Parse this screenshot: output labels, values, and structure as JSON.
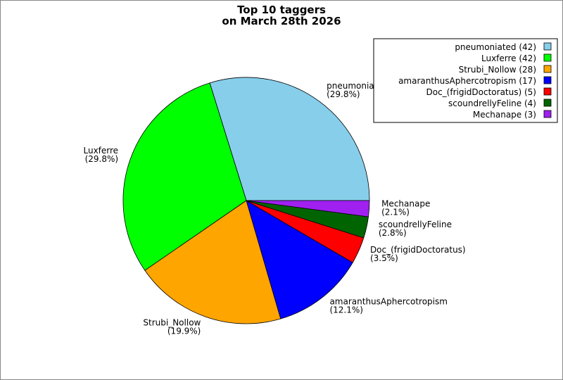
{
  "chart_data": {
    "type": "pie",
    "title": "Top 10 taggers",
    "subtitle": "on March 28th 2026",
    "categories": [
      "pneumoniated",
      "Luxferre",
      "Strubi_Nollow",
      "amaranthusAphercotropism",
      "Doc_(frigidDoctoratus)",
      "scoundrellyFeline",
      "Mechanape"
    ],
    "values": [
      29.8,
      29.8,
      19.9,
      12.1,
      3.5,
      2.8,
      2.1
    ],
    "value_labels": [
      "(29.8%)",
      "(29.8%)",
      "(19.9%)",
      "(12.1%)",
      "(3.5%)",
      "(2.8%)",
      "(2.1%)"
    ],
    "legend_labels": [
      "pneumoniated (42)",
      "Luxferre (42)",
      "Strubi_Nollow (28)",
      "amaranthusAphercotropism (17)",
      "Doc_(frigidDoctoratus) (5)",
      "scoundrellyFeline (4)",
      "Mechanape (3)"
    ],
    "colors": [
      "#87ceeb",
      "#00ff00",
      "#ffa500",
      "#0000ff",
      "#ff0000",
      "#006400",
      "#a020f0"
    ],
    "legend": "upper right"
  }
}
